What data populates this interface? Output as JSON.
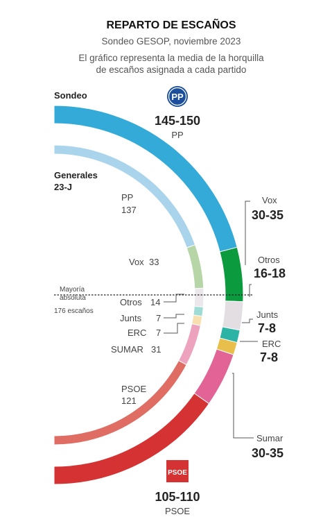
{
  "header": {
    "title": "REPARTO DE ESCAÑOS",
    "subtitle": "Sondeo GESOP, noviembre 2023",
    "note_line1": "El gráfico representa la media de la horquilla",
    "note_line2": "de escaños asignada a cada partido"
  },
  "chart_data": {
    "type": "semicircle-parliament",
    "total_seats": 350,
    "majority": {
      "line1": "Mayoría",
      "line2": "absoluta",
      "line3": "176 escaños",
      "seats": 176
    },
    "series": [
      {
        "name": "Sondeo",
        "segments": [
          {
            "party": "PP",
            "seats_label": "145-150",
            "seats": 147.5,
            "color": "#34aad8"
          },
          {
            "party": "Vox",
            "seats_label": "30-35",
            "seats": 32.5,
            "color": "#0b9a3e"
          },
          {
            "party": "Otros",
            "seats_label": "16-18",
            "seats": 17,
            "color": "#e2dee2"
          },
          {
            "party": "Junts",
            "seats_label": "7-8",
            "seats": 7.5,
            "color": "#2bb3a6"
          },
          {
            "party": "ERC",
            "seats_label": "7-8",
            "seats": 7.5,
            "color": "#e7bf4a"
          },
          {
            "party": "Sumar",
            "seats_label": "30-35",
            "seats": 32.5,
            "color": "#e26496"
          },
          {
            "party": "PSOE",
            "seats_label": "105-110",
            "seats": 107.5,
            "color": "#d53333"
          }
        ]
      },
      {
        "name": "Generales",
        "name_line2": "23-J",
        "segments": [
          {
            "party": "PP",
            "seats": 137,
            "color": "#a9d4ec"
          },
          {
            "party": "Vox",
            "seats": 33,
            "color": "#b6d6a7"
          },
          {
            "party": "Otros",
            "seats": 14,
            "color": "#ebe7eb"
          },
          {
            "party": "Junts",
            "seats": 7,
            "color": "#9edcd5"
          },
          {
            "party": "ERC",
            "seats": 7,
            "color": "#f7dfb0"
          },
          {
            "party": "SUMAR",
            "seats": 31,
            "color": "#eda3bd"
          },
          {
            "party": "PSOE",
            "seats": 121,
            "color": "#df6d63"
          }
        ]
      }
    ]
  },
  "logos": {
    "pp": {
      "text": "PP",
      "color": "#1b4f9e"
    },
    "psoe": {
      "text": "PSOE",
      "color": "#d53333"
    }
  }
}
